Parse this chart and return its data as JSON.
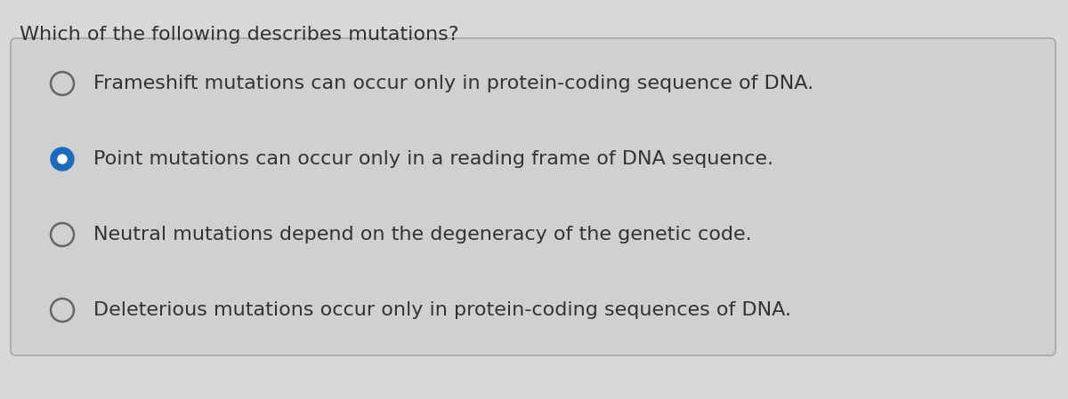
{
  "question": "Which of the following describes mutations?",
  "options": [
    "Frameshift mutations can occur only in protein-coding sequence of DNA.",
    "Point mutations can occur only in a reading frame of DNA sequence.",
    "Neutral mutations depend on the degeneracy of the genetic code.",
    "Deleterious mutations occur only in protein-coding sequences of DNA."
  ],
  "selected_index": 1,
  "bg_color": "#d8d8d8",
  "box_bg_color": "#d0d0d0",
  "box_border_color": "#aaaaaa",
  "question_color": "#333333",
  "option_color": "#333333",
  "radio_empty_edge_color": "#666666",
  "radio_filled_color": "#1a6bbf",
  "radio_dot_color": "#ffffff",
  "question_fontsize": 16,
  "option_fontsize": 16,
  "fig_width": 12.0,
  "fig_height": 4.49,
  "dpi": 100
}
